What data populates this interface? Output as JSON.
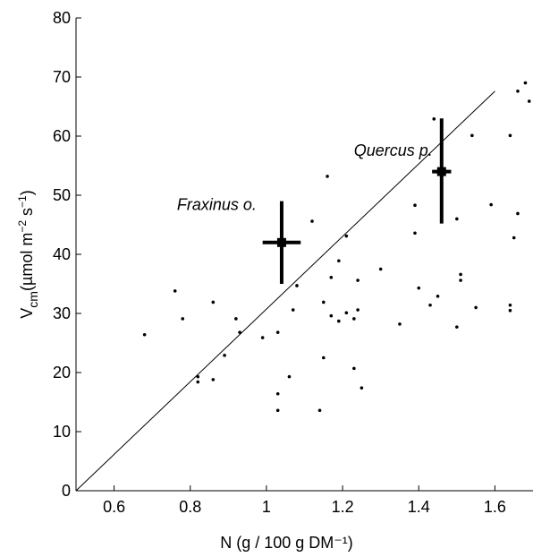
{
  "chart_data": {
    "type": "scatter",
    "title": "",
    "xlabel": "N (g / 100 g DM⁻¹)",
    "ylabel": "V_cm (µmol m⁻² s⁻¹)",
    "ylabel_main": "V",
    "ylabel_sub": "cm",
    "ylabel_rest": "(µmol m",
    "ylabel_sup1": "−2",
    "ylabel_mid": " s",
    "ylabel_sup2": "−1",
    "ylabel_end": ")",
    "xlim": [
      0.5,
      1.7
    ],
    "ylim": [
      0,
      80
    ],
    "xticks": [
      0.6,
      0.8,
      1,
      1.2,
      1.4,
      1.6
    ],
    "xtick_labels": [
      "0.6",
      "0.8",
      "1",
      "1.2",
      "1.4",
      "1.6"
    ],
    "yticks": [
      0,
      10,
      20,
      30,
      40,
      50,
      60,
      70,
      80
    ],
    "ytick_labels": [
      "0",
      "10",
      "20",
      "30",
      "40",
      "50",
      "60",
      "70",
      "80"
    ],
    "grid": false,
    "points": [
      [
        0.68,
        26.4
      ],
      [
        0.76,
        33.8
      ],
      [
        0.78,
        29.1
      ],
      [
        0.82,
        19.3
      ],
      [
        0.82,
        18.4
      ],
      [
        0.86,
        31.9
      ],
      [
        0.86,
        18.8
      ],
      [
        0.89,
        22.9
      ],
      [
        0.92,
        29.1
      ],
      [
        0.93,
        26.8
      ],
      [
        0.99,
        25.9
      ],
      [
        1.03,
        26.8
      ],
      [
        1.03,
        16.4
      ],
      [
        1.03,
        13.6
      ],
      [
        1.06,
        19.3
      ],
      [
        1.07,
        30.6
      ],
      [
        1.08,
        34.7
      ],
      [
        1.12,
        45.6
      ],
      [
        1.14,
        13.6
      ],
      [
        1.15,
        22.5
      ],
      [
        1.15,
        31.9
      ],
      [
        1.16,
        53.2
      ],
      [
        1.17,
        36.1
      ],
      [
        1.17,
        29.6
      ],
      [
        1.19,
        28.7
      ],
      [
        1.19,
        38.9
      ],
      [
        1.21,
        43.1
      ],
      [
        1.21,
        30.1
      ],
      [
        1.23,
        29.1
      ],
      [
        1.23,
        20.7
      ],
      [
        1.24,
        35.6
      ],
      [
        1.24,
        30.6
      ],
      [
        1.25,
        17.4
      ],
      [
        1.3,
        37.5
      ],
      [
        1.35,
        28.2
      ],
      [
        1.39,
        48.3
      ],
      [
        1.39,
        43.6
      ],
      [
        1.4,
        34.3
      ],
      [
        1.43,
        31.4
      ],
      [
        1.44,
        62.9
      ],
      [
        1.45,
        32.9
      ],
      [
        1.5,
        46.0
      ],
      [
        1.5,
        27.7
      ],
      [
        1.51,
        36.6
      ],
      [
        1.51,
        35.6
      ],
      [
        1.54,
        60.1
      ],
      [
        1.55,
        31.0
      ],
      [
        1.59,
        48.4
      ],
      [
        1.64,
        60.1
      ],
      [
        1.64,
        31.4
      ],
      [
        1.64,
        30.5
      ],
      [
        1.65,
        42.8
      ],
      [
        1.66,
        46.9
      ],
      [
        1.66,
        67.6
      ],
      [
        1.68,
        69.0
      ],
      [
        1.69,
        65.9
      ]
    ],
    "fit_line": {
      "x1": 0.5,
      "y1": 0,
      "x2": 1.6,
      "y2": 67.6
    },
    "error_markers": [
      {
        "label": "Fraxinus o.",
        "x": 1.04,
        "y": 42.0,
        "x_low": 0.99,
        "x_high": 1.09,
        "y_low": 35.0,
        "y_high": 49.0
      },
      {
        "label": "Quercus p.",
        "x": 1.46,
        "y": 54.0,
        "x_low": 1.435,
        "x_high": 1.485,
        "y_low": 45.2,
        "y_high": 63.0
      }
    ]
  }
}
